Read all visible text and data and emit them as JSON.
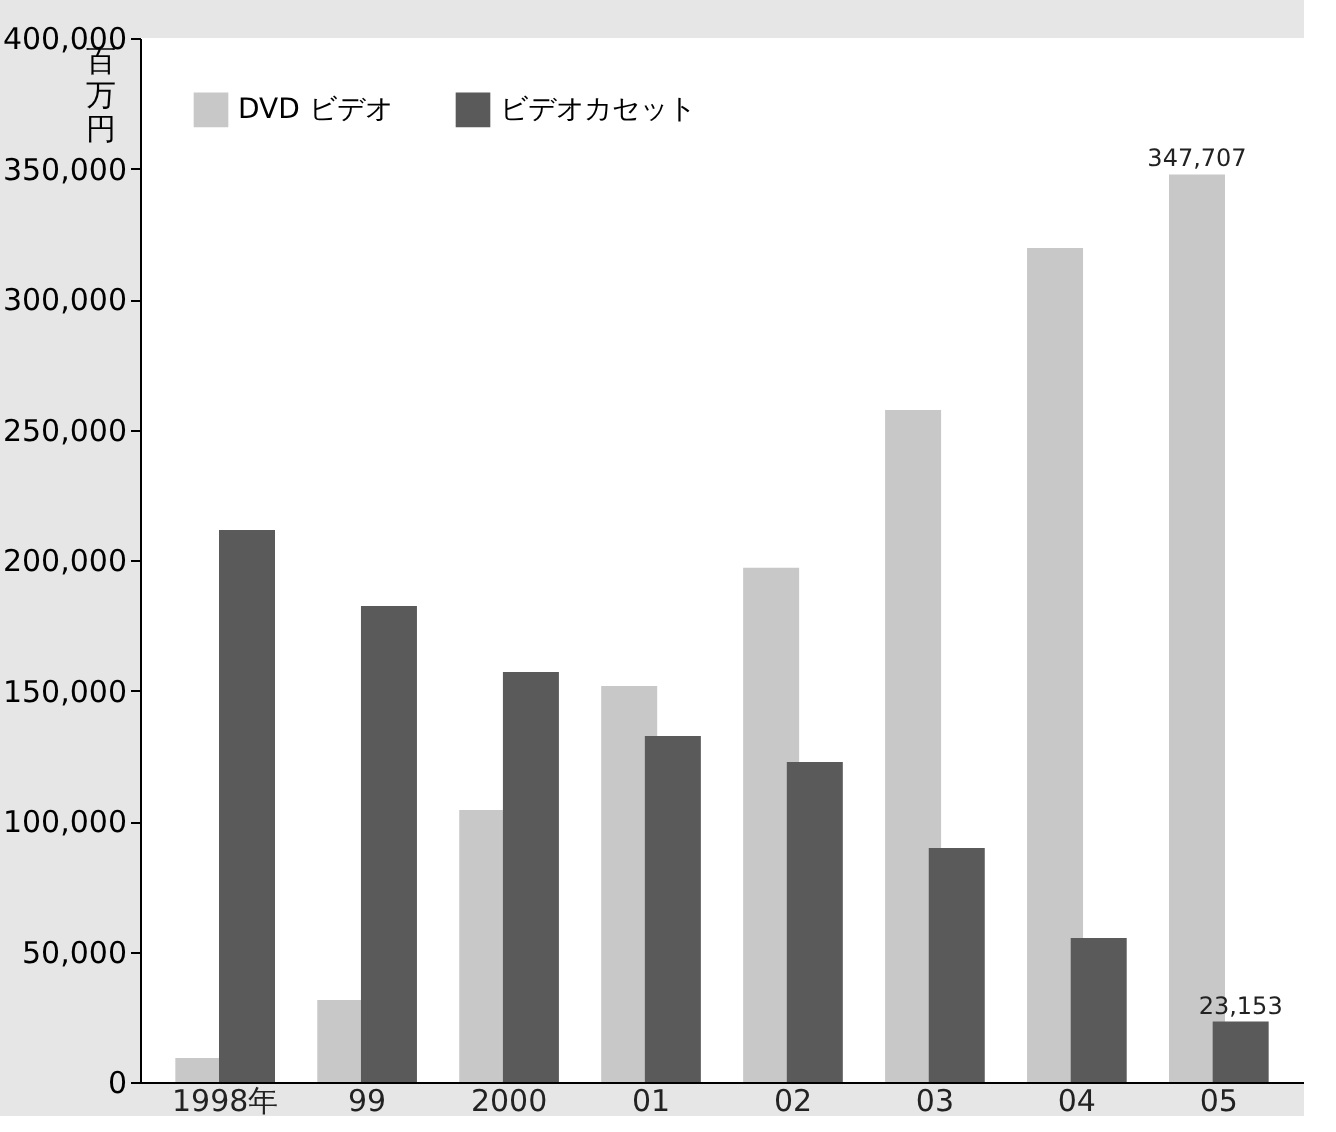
{
  "chart_data": {
    "type": "bar",
    "ylabel": "百万円",
    "categories": [
      "1998年",
      "99",
      "2000",
      "01",
      "02",
      "03",
      "04",
      "05"
    ],
    "series": [
      {
        "name": "DVD ビデオ",
        "color": "#c8c8c8",
        "values": [
          9200,
          31400,
          104200,
          151700,
          197000,
          257500,
          319500,
          347707
        ],
        "value_labels": [
          null,
          null,
          null,
          null,
          null,
          null,
          null,
          "347,707"
        ]
      },
      {
        "name": "ビデオカセット",
        "color": "#5a5a5a",
        "values": [
          211500,
          182400,
          157100,
          132600,
          122600,
          89700,
          55200,
          23153
        ],
        "value_labels": [
          null,
          null,
          null,
          null,
          null,
          null,
          null,
          "23,153"
        ]
      }
    ],
    "ylim": [
      0,
      400000
    ],
    "yticks": [
      0,
      {
        "value": 50000,
        "label": "50,000"
      },
      {
        "value": 100000,
        "label": "100,000"
      },
      {
        "value": 150000,
        "label": "150,000"
      },
      {
        "value": 200000,
        "label": "200,000"
      },
      {
        "value": 250000,
        "label": "250,000"
      },
      {
        "value": 300000,
        "label": "300,000"
      },
      {
        "value": 350000,
        "label": "350,000"
      },
      {
        "value": 400000,
        "label": "400,000"
      }
    ],
    "grid": false,
    "legend": "top left"
  }
}
